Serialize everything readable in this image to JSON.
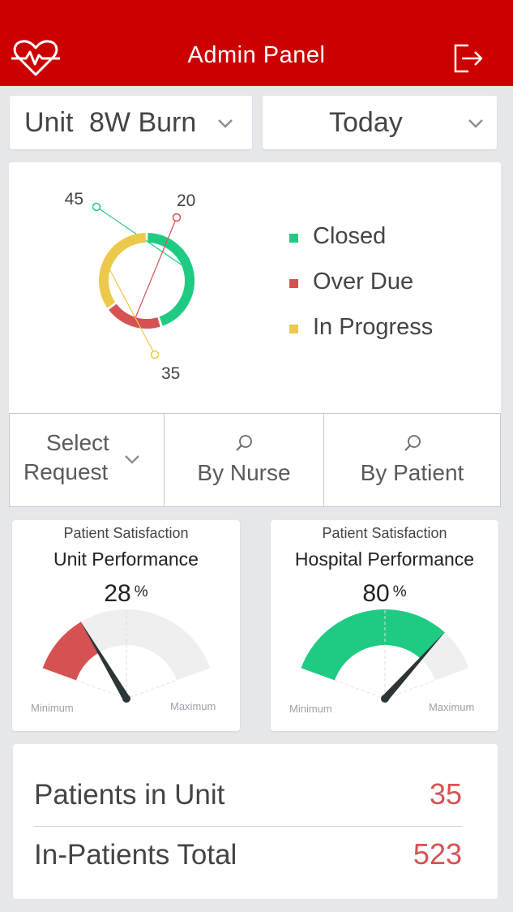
{
  "header": {
    "title": "Admin Panel",
    "bg_color": "#cc0000",
    "left_icon": "heart-pulse-icon",
    "right_icon": "logout-icon"
  },
  "filters_top": {
    "unit_label": "Unit",
    "unit_value": "8W Burn",
    "date_value": "Today"
  },
  "chart_data": {
    "type": "pie",
    "variant": "donut",
    "categories": [
      "Closed",
      "Over Due",
      "In Progress"
    ],
    "values": [
      45,
      20,
      35
    ],
    "colors": [
      "#1fcb83",
      "#d65252",
      "#ecc94b"
    ],
    "legend_position": "right"
  },
  "filter_bar": {
    "select_line1": "Select",
    "select_line2": "Request",
    "by_nurse": "By Nurse",
    "by_patient": "By Patient"
  },
  "gauges": [
    {
      "subtitle": "Patient Satisfaction",
      "title": "Unit Performance",
      "value": 28,
      "unit": "%",
      "min_label": "Minimum",
      "max_label": "Maximum",
      "color": "#d65252"
    },
    {
      "subtitle": "Patient Satisfaction",
      "title": "Hospital Performance",
      "value": 80,
      "unit": "%",
      "min_label": "Minimum",
      "max_label": "Maximum",
      "color": "#1fcb83"
    }
  ],
  "stats": [
    {
      "label": "Patients in Unit",
      "value": "35"
    },
    {
      "label": "In-Patients Total",
      "value": "523"
    }
  ]
}
